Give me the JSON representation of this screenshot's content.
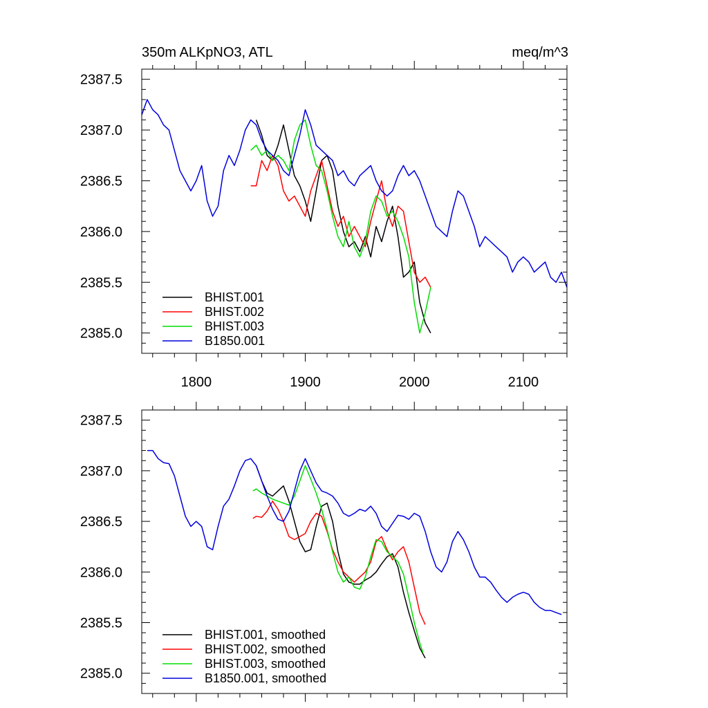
{
  "chart_data": [
    {
      "type": "line",
      "title_left": "350m ALKpNO3, ATL",
      "title_right": "meq/m^3",
      "xlim": [
        1750,
        2140
      ],
      "ylim": [
        2384.8,
        2387.6
      ],
      "xticks": [
        1800,
        1900,
        2000,
        2100
      ],
      "xtick_labels": [
        "1800",
        "1900",
        "2000",
        "2100"
      ],
      "yticks": [
        2385.0,
        2385.5,
        2386.0,
        2386.5,
        2387.0,
        2387.5
      ],
      "ytick_labels": [
        "2385.0",
        "2385.5",
        "2386.0",
        "2386.5",
        "2387.0",
        "2387.5"
      ],
      "legend_position": "bottom-left",
      "series": [
        {
          "name": "BHIST.001",
          "color": "#000000",
          "x": [
            1855,
            1860,
            1865,
            1870,
            1875,
            1880,
            1885,
            1890,
            1895,
            1900,
            1905,
            1910,
            1915,
            1920,
            1925,
            1930,
            1935,
            1940,
            1945,
            1950,
            1955,
            1960,
            1965,
            1970,
            1975,
            1980,
            1985,
            1990,
            1995,
            2000,
            2005,
            2010,
            2015
          ],
          "y": [
            2387.1,
            2386.95,
            2386.75,
            2386.7,
            2386.85,
            2387.05,
            2386.8,
            2386.55,
            2386.45,
            2386.3,
            2386.1,
            2386.4,
            2386.7,
            2386.75,
            2386.6,
            2386.25,
            2386.0,
            2385.85,
            2385.9,
            2385.8,
            2385.95,
            2385.75,
            2386.05,
            2385.9,
            2386.1,
            2386.25,
            2385.95,
            2385.55,
            2385.6,
            2385.7,
            2385.3,
            2385.1,
            2385.0
          ]
        },
        {
          "name": "BHIST.002",
          "color": "#ff0000",
          "x": [
            1850,
            1855,
            1860,
            1865,
            1870,
            1875,
            1880,
            1885,
            1890,
            1895,
            1900,
            1905,
            1910,
            1915,
            1920,
            1925,
            1930,
            1935,
            1940,
            1945,
            1950,
            1955,
            1960,
            1965,
            1970,
            1975,
            1980,
            1985,
            1990,
            1995,
            2000,
            2005,
            2010,
            2015
          ],
          "y": [
            2386.45,
            2386.45,
            2386.7,
            2386.6,
            2386.75,
            2386.65,
            2386.4,
            2386.3,
            2386.35,
            2386.25,
            2386.15,
            2386.4,
            2386.55,
            2386.7,
            2386.45,
            2386.2,
            2386.05,
            2386.15,
            2385.95,
            2386.05,
            2385.95,
            2385.85,
            2386.1,
            2386.3,
            2386.5,
            2386.2,
            2386.05,
            2386.25,
            2386.2,
            2385.9,
            2385.6,
            2385.5,
            2385.55,
            2385.45
          ]
        },
        {
          "name": "BHIST.003",
          "color": "#00dd00",
          "x": [
            1850,
            1855,
            1860,
            1865,
            1870,
            1875,
            1880,
            1885,
            1890,
            1895,
            1900,
            1905,
            1910,
            1915,
            1920,
            1925,
            1930,
            1935,
            1940,
            1945,
            1950,
            1955,
            1960,
            1965,
            1970,
            1975,
            1980,
            1985,
            1990,
            1995,
            2000,
            2005,
            2010,
            2015
          ],
          "y": [
            2386.8,
            2386.85,
            2386.75,
            2386.8,
            2386.7,
            2386.75,
            2386.7,
            2386.6,
            2386.9,
            2387.05,
            2387.1,
            2386.85,
            2386.65,
            2386.6,
            2386.4,
            2386.15,
            2385.95,
            2385.85,
            2386.1,
            2385.85,
            2385.75,
            2385.9,
            2386.2,
            2386.35,
            2386.3,
            2386.15,
            2386.2,
            2386.1,
            2385.95,
            2385.75,
            2385.3,
            2385.0,
            2385.2,
            2385.45
          ]
        },
        {
          "name": "B1850.001",
          "color": "#0000dd",
          "x": [
            1750,
            1755,
            1760,
            1765,
            1770,
            1775,
            1780,
            1785,
            1790,
            1795,
            1800,
            1805,
            1810,
            1815,
            1820,
            1825,
            1830,
            1835,
            1840,
            1845,
            1850,
            1855,
            1860,
            1865,
            1870,
            1875,
            1880,
            1885,
            1890,
            1895,
            1900,
            1905,
            1910,
            1915,
            1920,
            1925,
            1930,
            1935,
            1940,
            1945,
            1950,
            1955,
            1960,
            1965,
            1970,
            1975,
            1980,
            1985,
            1990,
            1995,
            2000,
            2005,
            2010,
            2015,
            2020,
            2025,
            2030,
            2035,
            2040,
            2045,
            2050,
            2055,
            2060,
            2065,
            2070,
            2075,
            2080,
            2085,
            2090,
            2095,
            2100,
            2105,
            2110,
            2115,
            2120,
            2125,
            2130,
            2135,
            2140
          ],
          "y": [
            2387.15,
            2387.3,
            2387.2,
            2387.15,
            2387.05,
            2387.0,
            2386.8,
            2386.6,
            2386.5,
            2386.4,
            2386.5,
            2386.65,
            2386.3,
            2386.15,
            2386.25,
            2386.6,
            2386.75,
            2386.65,
            2386.8,
            2387.0,
            2387.1,
            2387.05,
            2386.9,
            2386.8,
            2386.75,
            2386.7,
            2386.6,
            2386.55,
            2386.75,
            2386.95,
            2387.2,
            2387.05,
            2386.85,
            2386.8,
            2386.75,
            2386.7,
            2386.55,
            2386.6,
            2386.5,
            2386.45,
            2386.55,
            2386.6,
            2386.65,
            2386.5,
            2386.4,
            2386.35,
            2386.4,
            2386.55,
            2386.65,
            2386.55,
            2386.6,
            2386.5,
            2386.35,
            2386.2,
            2386.05,
            2386.0,
            2385.95,
            2386.2,
            2386.4,
            2386.35,
            2386.2,
            2386.05,
            2385.85,
            2385.95,
            2385.9,
            2385.85,
            2385.8,
            2385.75,
            2385.6,
            2385.7,
            2385.75,
            2385.7,
            2385.6,
            2385.65,
            2385.7,
            2385.55,
            2385.5,
            2385.6,
            2385.45
          ]
        }
      ]
    },
    {
      "type": "line",
      "xlim": [
        1750,
        2140
      ],
      "ylim": [
        2384.8,
        2387.6
      ],
      "xticks": [
        1800,
        1900,
        2000,
        2100
      ],
      "yticks": [
        2385.0,
        2385.5,
        2386.0,
        2386.5,
        2387.0,
        2387.5
      ],
      "ytick_labels": [
        "2385.0",
        "2385.5",
        "2386.0",
        "2386.5",
        "2387.0",
        "2387.5"
      ],
      "legend_position": "bottom-left",
      "series": [
        {
          "name": "BHIST.001, smoothed",
          "color": "#000000",
          "x": [
            1855,
            1860,
            1865,
            1870,
            1875,
            1880,
            1885,
            1890,
            1895,
            1900,
            1905,
            1910,
            1915,
            1920,
            1925,
            1930,
            1935,
            1940,
            1945,
            1950,
            1955,
            1960,
            1965,
            1970,
            1975,
            1980,
            1985,
            1990,
            1995,
            2000,
            2005,
            2010
          ],
          "y": [
            2387.05,
            2386.9,
            2386.78,
            2386.75,
            2386.8,
            2386.85,
            2386.7,
            2386.5,
            2386.3,
            2386.2,
            2386.22,
            2386.45,
            2386.65,
            2386.68,
            2386.5,
            2386.2,
            2385.98,
            2385.9,
            2385.88,
            2385.88,
            2385.92,
            2385.95,
            2386.0,
            2386.08,
            2386.15,
            2386.18,
            2386.05,
            2385.8,
            2385.6,
            2385.42,
            2385.25,
            2385.15
          ]
        },
        {
          "name": "BHIST.002, smoothed",
          "color": "#ff0000",
          "x": [
            1852,
            1855,
            1860,
            1865,
            1870,
            1875,
            1880,
            1885,
            1890,
            1895,
            1900,
            1905,
            1910,
            1915,
            1920,
            1925,
            1930,
            1935,
            1940,
            1945,
            1950,
            1955,
            1960,
            1965,
            1970,
            1975,
            1980,
            1985,
            1990,
            1995,
            2000,
            2005,
            2010
          ],
          "y": [
            2386.53,
            2386.55,
            2386.54,
            2386.6,
            2386.7,
            2386.62,
            2386.5,
            2386.35,
            2386.32,
            2386.35,
            2386.38,
            2386.5,
            2386.58,
            2386.55,
            2386.4,
            2386.22,
            2386.1,
            2386.0,
            2385.95,
            2385.9,
            2385.95,
            2386.0,
            2386.1,
            2386.3,
            2386.35,
            2386.22,
            2386.12,
            2386.2,
            2386.25,
            2386.1,
            2385.85,
            2385.6,
            2385.48
          ]
        },
        {
          "name": "BHIST.003, smoothed",
          "color": "#00dd00",
          "x": [
            1852,
            1855,
            1860,
            1865,
            1870,
            1875,
            1880,
            1885,
            1890,
            1895,
            1900,
            1905,
            1910,
            1915,
            1920,
            1925,
            1930,
            1935,
            1940,
            1945,
            1950,
            1955,
            1960,
            1965,
            1970,
            1975,
            1980,
            1985,
            1990,
            1995,
            2000,
            2005,
            2008
          ],
          "y": [
            2386.8,
            2386.82,
            2386.78,
            2386.75,
            2386.72,
            2386.7,
            2386.68,
            2386.66,
            2386.75,
            2386.9,
            2387.05,
            2386.92,
            2386.78,
            2386.62,
            2386.42,
            2386.2,
            2386.0,
            2385.9,
            2385.95,
            2385.85,
            2385.83,
            2385.95,
            2386.15,
            2386.32,
            2386.3,
            2386.2,
            2386.15,
            2386.1,
            2385.98,
            2385.75,
            2385.5,
            2385.3,
            2385.2
          ]
        },
        {
          "name": "B1850.001, smoothed",
          "color": "#0000dd",
          "x": [
            1755,
            1760,
            1765,
            1770,
            1775,
            1780,
            1785,
            1790,
            1795,
            1800,
            1805,
            1810,
            1815,
            1820,
            1825,
            1830,
            1835,
            1840,
            1845,
            1850,
            1855,
            1860,
            1865,
            1870,
            1875,
            1880,
            1885,
            1890,
            1895,
            1900,
            1905,
            1910,
            1915,
            1920,
            1925,
            1930,
            1935,
            1940,
            1945,
            1950,
            1955,
            1960,
            1965,
            1970,
            1975,
            1980,
            1985,
            1990,
            1995,
            2000,
            2005,
            2010,
            2015,
            2020,
            2025,
            2030,
            2035,
            2040,
            2045,
            2050,
            2055,
            2060,
            2065,
            2070,
            2075,
            2080,
            2085,
            2090,
            2095,
            2100,
            2105,
            2110,
            2115,
            2120,
            2125,
            2130,
            2135
          ],
          "y": [
            2387.2,
            2387.2,
            2387.12,
            2387.08,
            2387.07,
            2386.95,
            2386.75,
            2386.55,
            2386.45,
            2386.5,
            2386.45,
            2386.25,
            2386.22,
            2386.45,
            2386.65,
            2386.72,
            2386.85,
            2387.0,
            2387.1,
            2387.12,
            2387.05,
            2386.9,
            2386.75,
            2386.62,
            2386.52,
            2386.5,
            2386.6,
            2386.8,
            2387.0,
            2387.12,
            2387.0,
            2386.88,
            2386.8,
            2386.78,
            2386.75,
            2386.68,
            2386.58,
            2386.55,
            2386.58,
            2386.62,
            2386.6,
            2386.65,
            2386.58,
            2386.45,
            2386.4,
            2386.48,
            2386.56,
            2386.55,
            2386.52,
            2386.58,
            2386.55,
            2386.4,
            2386.2,
            2386.05,
            2386.0,
            2386.1,
            2386.3,
            2386.4,
            2386.32,
            2386.2,
            2386.05,
            2385.95,
            2385.95,
            2385.9,
            2385.82,
            2385.75,
            2385.7,
            2385.75,
            2385.78,
            2385.8,
            2385.78,
            2385.7,
            2385.65,
            2385.62,
            2385.62,
            2385.6,
            2385.58
          ]
        }
      ]
    }
  ]
}
